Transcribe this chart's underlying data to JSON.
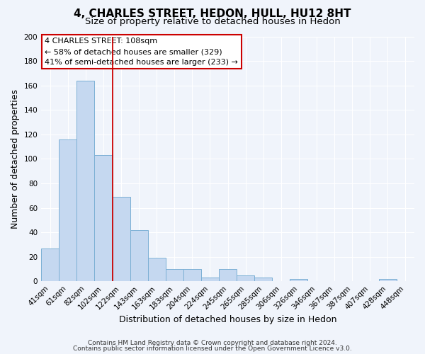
{
  "title": "4, CHARLES STREET, HEDON, HULL, HU12 8HT",
  "subtitle": "Size of property relative to detached houses in Hedon",
  "xlabel": "Distribution of detached houses by size in Hedon",
  "ylabel": "Number of detached properties",
  "bar_labels": [
    "41sqm",
    "61sqm",
    "82sqm",
    "102sqm",
    "122sqm",
    "143sqm",
    "163sqm",
    "183sqm",
    "204sqm",
    "224sqm",
    "245sqm",
    "265sqm",
    "285sqm",
    "306sqm",
    "326sqm",
    "346sqm",
    "367sqm",
    "387sqm",
    "407sqm",
    "428sqm",
    "448sqm"
  ],
  "bar_values": [
    27,
    116,
    164,
    103,
    69,
    42,
    19,
    10,
    10,
    3,
    10,
    5,
    3,
    0,
    2,
    0,
    0,
    0,
    0,
    2,
    0
  ],
  "bar_color": "#c5d8f0",
  "bar_edge_color": "#7bafd4",
  "ylim": [
    0,
    200
  ],
  "yticks": [
    0,
    20,
    40,
    60,
    80,
    100,
    120,
    140,
    160,
    180,
    200
  ],
  "redline_x": 3.5,
  "annotation_title": "4 CHARLES STREET: 108sqm",
  "annotation_line1": "← 58% of detached houses are smaller (329)",
  "annotation_line2": "41% of semi-detached houses are larger (233) →",
  "footer1": "Contains HM Land Registry data © Crown copyright and database right 2024.",
  "footer2": "Contains public sector information licensed under the Open Government Licence v3.0.",
  "background_color": "#f0f4fb",
  "plot_bg_color": "#f0f4fb",
  "grid_color": "#ffffff",
  "title_fontsize": 11,
  "subtitle_fontsize": 9.5,
  "axis_label_fontsize": 9,
  "tick_fontsize": 7.5,
  "footer_fontsize": 6.5
}
